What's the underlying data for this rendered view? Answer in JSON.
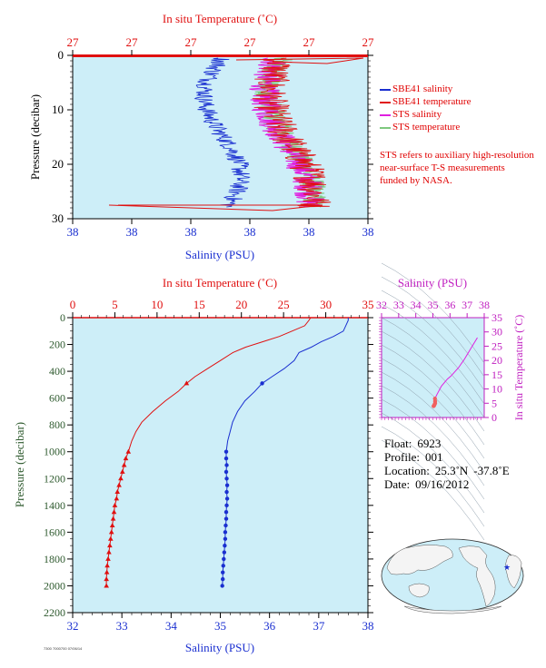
{
  "colors": {
    "plot_bg": "#cdeef8",
    "salinity": "#1a2fd0",
    "temperature": "#e01010",
    "sts_salinity": "#e020e0",
    "sts_temperature": "#7ec87e",
    "axis_salinity": "#1a2fd0",
    "axis_temperature": "#e01010",
    "axis_pressure": "#2e5a2e",
    "ts_axis": "#c020c0"
  },
  "chart_data": [
    {
      "type": "line",
      "title": "",
      "top_axis": {
        "label": "In situ Temperature (˚C)",
        "ticks": [
          "27",
          "27",
          "27",
          "27",
          "27",
          "27"
        ]
      },
      "bottom_axis": {
        "label": "Salinity (PSU)",
        "ticks": [
          "38",
          "38",
          "38",
          "38",
          "38",
          "38"
        ]
      },
      "left_axis": {
        "label": "Pressure (decibar)",
        "ticks": [
          "0",
          "10",
          "20",
          "30"
        ],
        "ylim": [
          0,
          30
        ],
        "inverted": true
      },
      "legend": [
        {
          "name": "SBE41 salinity",
          "color": "#1a2fd0"
        },
        {
          "name": "SBE41 temperature",
          "color": "#e01010"
        },
        {
          "name": "STS salinity",
          "color": "#e020e0"
        },
        {
          "name": "STS temperature",
          "color": "#7ec87e"
        }
      ],
      "note": "STS refers to auxiliary high-resolution near-surface T-S measurements funded by NASA."
    },
    {
      "type": "line",
      "title": "",
      "top_axis": {
        "label": "In situ Temperature (˚C)",
        "ticks": [
          "0",
          "5",
          "10",
          "15",
          "20",
          "25",
          "30",
          "35"
        ],
        "xlim": [
          0,
          35
        ]
      },
      "bottom_axis": {
        "label": "Salinity (PSU)",
        "ticks": [
          "32",
          "33",
          "34",
          "35",
          "36",
          "37",
          "38"
        ],
        "xlim": [
          32,
          38
        ]
      },
      "left_axis": {
        "label": "Pressure (decibar)",
        "ticks": [
          "0",
          "200",
          "400",
          "600",
          "800",
          "1000",
          "1200",
          "1400",
          "1600",
          "1800",
          "2000",
          "2200"
        ],
        "ylim": [
          0,
          2200
        ],
        "inverted": true
      },
      "series": [
        {
          "name": "Salinity",
          "color": "#1a2fd0",
          "points": [
            [
              37.6,
              0
            ],
            [
              37.6,
              20
            ],
            [
              37.55,
              60
            ],
            [
              37.5,
              100
            ],
            [
              37.3,
              140
            ],
            [
              37.05,
              180
            ],
            [
              36.85,
              220
            ],
            [
              36.6,
              260
            ],
            [
              36.5,
              320
            ],
            [
              36.3,
              380
            ],
            [
              36.05,
              440
            ],
            [
              35.85,
              490
            ],
            [
              35.7,
              550
            ],
            [
              35.5,
              620
            ],
            [
              35.35,
              700
            ],
            [
              35.25,
              780
            ],
            [
              35.2,
              850
            ],
            [
              35.15,
              920
            ],
            [
              35.12,
              1000
            ],
            [
              35.12,
              1050
            ],
            [
              35.13,
              1100
            ],
            [
              35.12,
              1150
            ],
            [
              35.13,
              1200
            ],
            [
              35.14,
              1250
            ],
            [
              35.13,
              1300
            ],
            [
              35.14,
              1350
            ],
            [
              35.13,
              1400
            ],
            [
              35.12,
              1450
            ],
            [
              35.12,
              1500
            ],
            [
              35.11,
              1550
            ],
            [
              35.1,
              1600
            ],
            [
              35.1,
              1650
            ],
            [
              35.09,
              1700
            ],
            [
              35.08,
              1750
            ],
            [
              35.07,
              1800
            ],
            [
              35.06,
              1850
            ],
            [
              35.05,
              1900
            ],
            [
              35.05,
              1950
            ],
            [
              35.04,
              2000
            ]
          ],
          "markers": [
            [
              35.85,
              490
            ],
            [
              35.12,
              1000
            ],
            [
              35.12,
              1050
            ],
            [
              35.13,
              1100
            ],
            [
              35.12,
              1150
            ],
            [
              35.13,
              1200
            ],
            [
              35.14,
              1250
            ],
            [
              35.13,
              1300
            ],
            [
              35.14,
              1350
            ],
            [
              35.13,
              1400
            ],
            [
              35.12,
              1450
            ],
            [
              35.12,
              1500
            ],
            [
              35.11,
              1550
            ],
            [
              35.1,
              1600
            ],
            [
              35.1,
              1650
            ],
            [
              35.09,
              1700
            ],
            [
              35.08,
              1750
            ],
            [
              35.07,
              1800
            ],
            [
              35.06,
              1850
            ],
            [
              35.05,
              1900
            ],
            [
              35.05,
              1950
            ],
            [
              35.04,
              2000
            ]
          ]
        },
        {
          "name": "Temperature",
          "color": "#e01010",
          "points": [
            [
              28.2,
              0
            ],
            [
              28.0,
              20
            ],
            [
              27.5,
              60
            ],
            [
              26.0,
              100
            ],
            [
              24.5,
              140
            ],
            [
              22.5,
              180
            ],
            [
              20.5,
              220
            ],
            [
              19.0,
              260
            ],
            [
              17.5,
              320
            ],
            [
              16.0,
              380
            ],
            [
              14.5,
              440
            ],
            [
              13.5,
              490
            ],
            [
              12.5,
              550
            ],
            [
              11.0,
              620
            ],
            [
              9.5,
              700
            ],
            [
              8.2,
              780
            ],
            [
              7.5,
              850
            ],
            [
              7.0,
              920
            ],
            [
              6.6,
              1000
            ],
            [
              6.3,
              1050
            ],
            [
              6.1,
              1100
            ],
            [
              5.9,
              1150
            ],
            [
              5.7,
              1200
            ],
            [
              5.5,
              1250
            ],
            [
              5.3,
              1300
            ],
            [
              5.2,
              1350
            ],
            [
              5.0,
              1400
            ],
            [
              4.9,
              1450
            ],
            [
              4.8,
              1500
            ],
            [
              4.7,
              1550
            ],
            [
              4.6,
              1600
            ],
            [
              4.5,
              1650
            ],
            [
              4.4,
              1700
            ],
            [
              4.3,
              1750
            ],
            [
              4.2,
              1800
            ],
            [
              4.1,
              1850
            ],
            [
              4.05,
              1900
            ],
            [
              4.0,
              1950
            ],
            [
              4.0,
              2000
            ]
          ],
          "markers": [
            [
              13.5,
              490
            ],
            [
              6.6,
              1000
            ],
            [
              6.3,
              1050
            ],
            [
              6.1,
              1100
            ],
            [
              5.9,
              1150
            ],
            [
              5.7,
              1200
            ],
            [
              5.5,
              1250
            ],
            [
              5.3,
              1300
            ],
            [
              5.2,
              1350
            ],
            [
              5.0,
              1400
            ],
            [
              4.9,
              1450
            ],
            [
              4.8,
              1500
            ],
            [
              4.7,
              1550
            ],
            [
              4.6,
              1600
            ],
            [
              4.5,
              1650
            ],
            [
              4.4,
              1700
            ],
            [
              4.3,
              1750
            ],
            [
              4.2,
              1800
            ],
            [
              4.1,
              1850
            ],
            [
              4.05,
              1900
            ],
            [
              4.0,
              1950
            ],
            [
              4.0,
              2000
            ]
          ]
        }
      ]
    },
    {
      "type": "scatter",
      "title": "",
      "top_axis": {
        "label": "Salinity (PSU)",
        "ticks": [
          "32",
          "33",
          "34",
          "35",
          "36",
          "37",
          "38"
        ],
        "xlim": [
          32,
          38
        ]
      },
      "right_axis": {
        "label": "In situ Temperature (˚C)",
        "ticks": [
          "0",
          "5",
          "10",
          "15",
          "20",
          "25",
          "30",
          "35"
        ],
        "ylim": [
          0,
          35
        ]
      },
      "series": [
        {
          "name": "T-S",
          "color": "#e020e0",
          "points": [
            [
              37.6,
              28
            ],
            [
              37.5,
              27
            ],
            [
              37.3,
              25
            ],
            [
              36.85,
              20.5
            ],
            [
              36.5,
              17.5
            ],
            [
              36.05,
              14.5
            ],
            [
              35.85,
              13.5
            ],
            [
              35.5,
              11
            ],
            [
              35.25,
              8.2
            ],
            [
              35.15,
              7
            ],
            [
              35.12,
              6.6
            ],
            [
              35.13,
              5.7
            ],
            [
              35.13,
              5.0
            ],
            [
              35.1,
              4.6
            ],
            [
              35.07,
              4.2
            ],
            [
              35.04,
              4.0
            ]
          ]
        }
      ]
    }
  ],
  "float_info": {
    "float_label": "Float:",
    "float_value": "6923",
    "profile_label": "Profile:",
    "profile_value": "001",
    "location_label": "Location:",
    "location_lat": "25.3˚N",
    "location_lon": "-37.8˚E",
    "date_label": "Date:",
    "date_value": "09/16/2012"
  },
  "footer": "7300 7000700 07/06/14"
}
